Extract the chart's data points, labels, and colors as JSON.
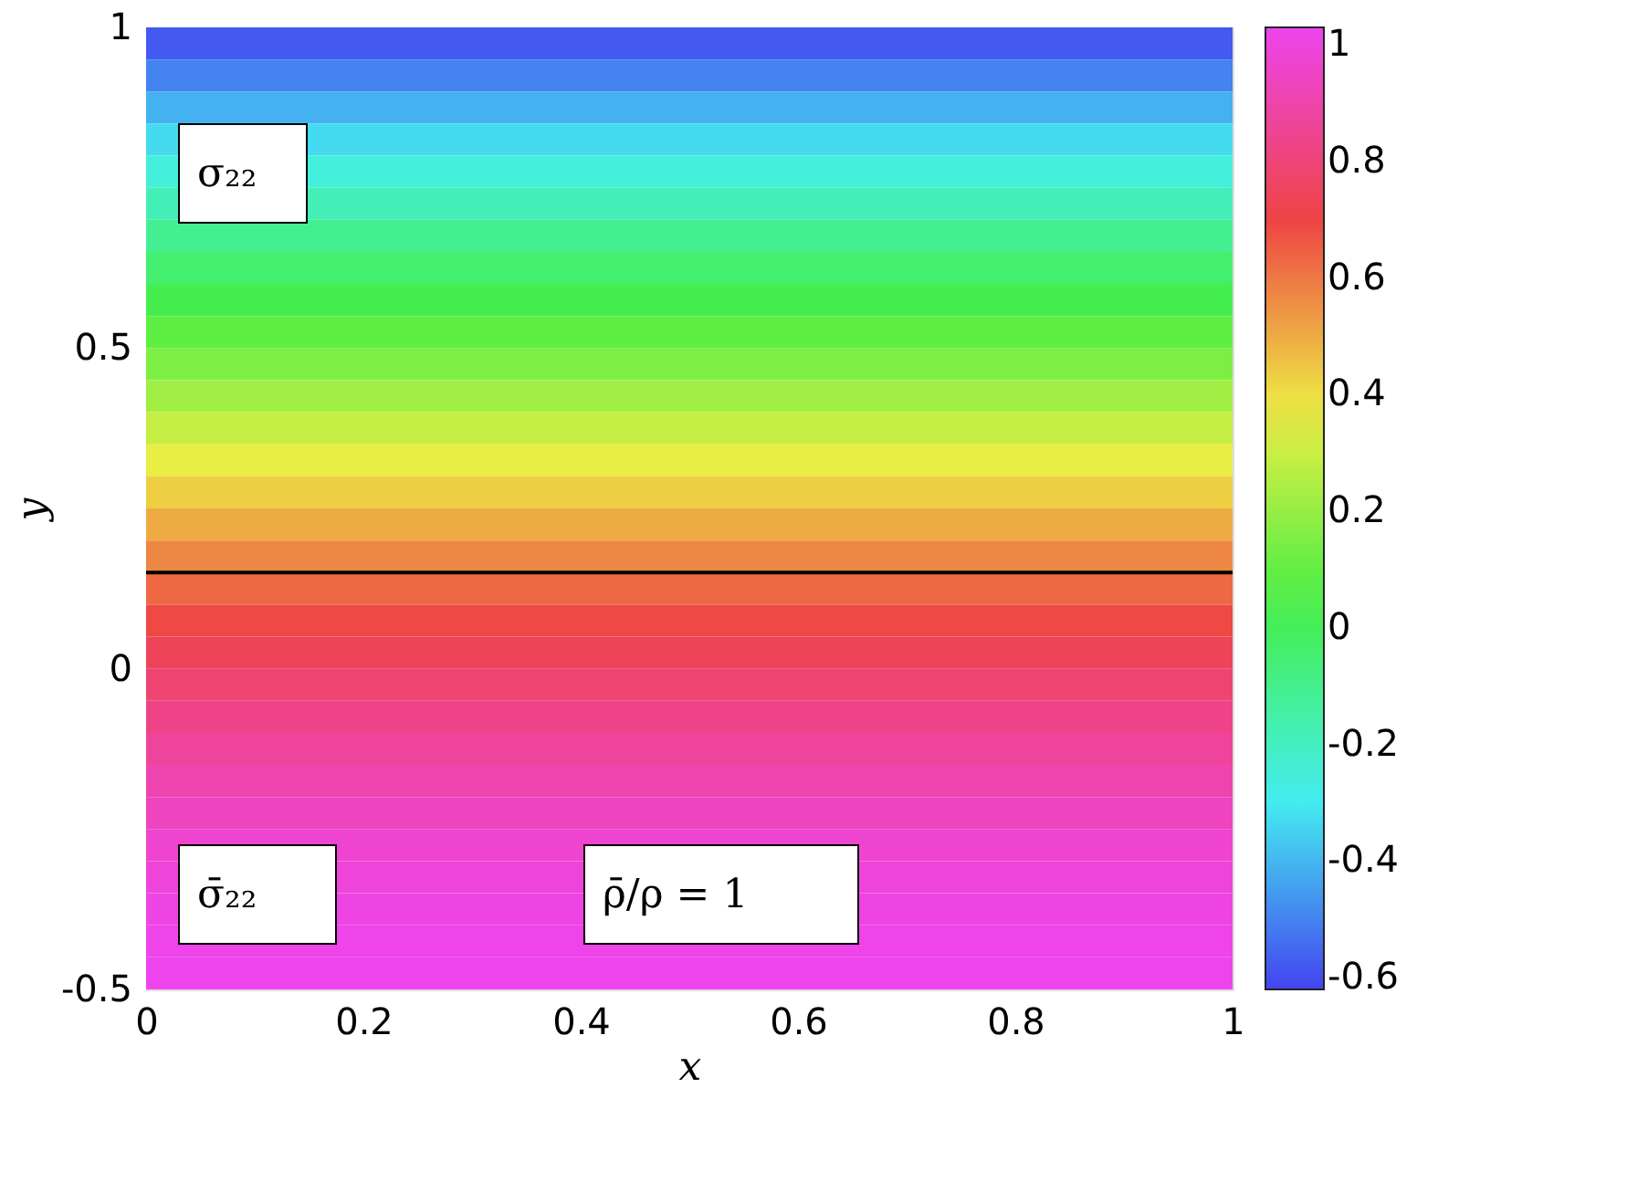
{
  "chart_data": {
    "type": "heatmap",
    "xlabel": "x",
    "ylabel": "y",
    "y": [
      0.975,
      0.925,
      0.875,
      0.825,
      0.775,
      0.725,
      0.675,
      0.625,
      0.575,
      0.525,
      0.475,
      0.425,
      0.375,
      0.325,
      0.275,
      0.225,
      0.175,
      0.125,
      0.075,
      0.025,
      -0.025,
      -0.075,
      -0.125,
      -0.175,
      -0.225,
      -0.275,
      -0.325,
      -0.375,
      -0.425,
      -0.475
    ],
    "cells": [
      [
        -0.58
      ],
      [
        -0.5
      ],
      [
        -0.41
      ],
      [
        -0.33
      ],
      [
        -0.25
      ],
      [
        -0.18
      ],
      [
        -0.11
      ],
      [
        -0.04
      ],
      [
        0.02
      ],
      [
        0.09
      ],
      [
        0.15
      ],
      [
        0.22
      ],
      [
        0.29
      ],
      [
        0.36
      ],
      [
        0.43
      ],
      [
        0.5
      ],
      [
        0.57
      ],
      [
        0.63
      ],
      [
        0.69
      ],
      [
        0.74
      ],
      [
        0.79
      ],
      [
        0.83
      ],
      [
        0.87
      ],
      [
        0.91
      ],
      [
        0.94
      ],
      [
        0.97
      ],
      [
        0.99
      ],
      [
        1.01
      ],
      [
        1.02
      ],
      [
        1.03
      ]
    ],
    "colors": [
      "#4444f0",
      "#44f0f0",
      "#44ee44",
      "#eeee44",
      "#ee4444",
      "#ee44ee"
    ],
    "clim": [
      -0.62,
      1.03
    ],
    "cticks": [
      -0.6,
      -0.4,
      -0.2,
      0,
      0.2,
      0.4,
      0.6,
      0.8,
      1
    ],
    "xlim": [
      0,
      1
    ],
    "xticks": [
      0,
      0.2,
      0.4,
      0.6,
      0.8,
      1
    ],
    "ylim": [
      -0.5,
      1
    ],
    "yticks": [
      -0.5,
      0,
      0.5,
      1
    ],
    "ref_lines": [
      {
        "axis": "y",
        "value": 0.15,
        "color": "#000000"
      }
    ],
    "annotations": [
      "σ₂₂",
      "σ̄₂₂",
      "ρ̄/ρ = 1"
    ],
    "grid": false
  }
}
